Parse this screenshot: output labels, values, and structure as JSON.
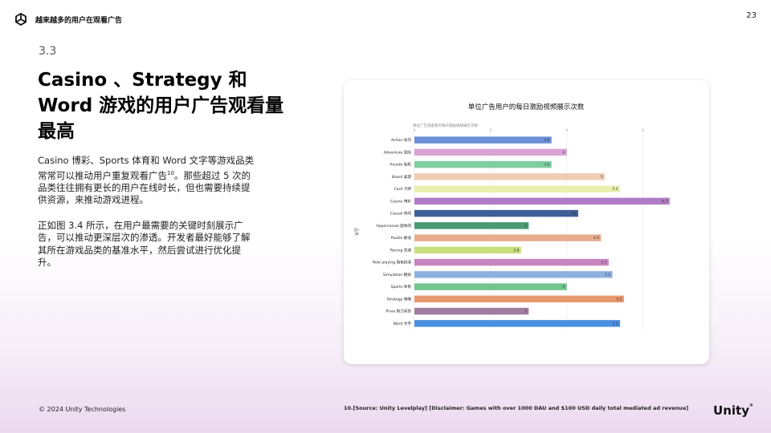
{
  "header": {
    "title": "越来越多的用户在观看广告",
    "page_number": "23"
  },
  "section": {
    "number": "3.3"
  },
  "main": {
    "title": "Casino 、Strategy 和 Word 游戏的用户广告观看量最高",
    "para1": "Casino 博彩、Sports 体育和 Word 文字等游戏品类常常可以推动用户重复观看广告",
    "para1_sup": "10",
    "para1_tail": "。那些超过 5 次的品类往往拥有更长的用户在线时长，但也需要持续提供资源，来推动游戏进程。",
    "para2": "正如图 3.4 所示，在用户最需要的关键时刻展示广告，可以推动更深层次的渗透。开发者最好能够了解其所在游戏品类的基准水平，然后尝试进行优化提升。"
  },
  "footer": {
    "copyright": "© 2024 Unity Technologies",
    "note": "10.[Source: Unity Levelplay] [Disclaimer: Games with over 1000 DAU and $100 USD daily total mediated ad revenue]",
    "brand": "Unity",
    "brand_mark": "®"
  },
  "chart_data": {
    "type": "bar",
    "orientation": "horizontal",
    "title": "单位广告用户的每日激励视频展示次数",
    "xlabel": "每位广告观看者的每日激励视频展示次数",
    "ylabel": "品类",
    "xlim": [
      0,
      7
    ],
    "xticks": [
      0,
      2,
      4,
      6
    ],
    "grid": true,
    "categories": [
      "Action 动作",
      "Adventure 冒险",
      "Arcade 街机",
      "Board 桌游",
      "Card 卡牌",
      "Casino 博彩",
      "Casual 休闲",
      "Hypercasual 超休闲",
      "Puzzle 解谜",
      "Racing 竞速",
      "Role playing 角色扮演",
      "Simulation 模拟",
      "Sports 体育",
      "Strategy 策略",
      "Trivia 智力问答",
      "Word 文字"
    ],
    "values": [
      3.6,
      4,
      3.6,
      5,
      5.4,
      6.7,
      4.3,
      3,
      4.9,
      2.8,
      5.1,
      5.2,
      4,
      5.5,
      3,
      5.4
    ],
    "colors": [
      "#6b8fd8",
      "#d9a3d6",
      "#7dcea0",
      "#f1cdb4",
      "#e9f0b0",
      "#b07cc6",
      "#3e5f97",
      "#4a9a72",
      "#e8ad8f",
      "#c9df7e",
      "#c785c2",
      "#8fb1e0",
      "#74c48f",
      "#e8986e",
      "#a07d9e",
      "#4a8fe0"
    ]
  }
}
